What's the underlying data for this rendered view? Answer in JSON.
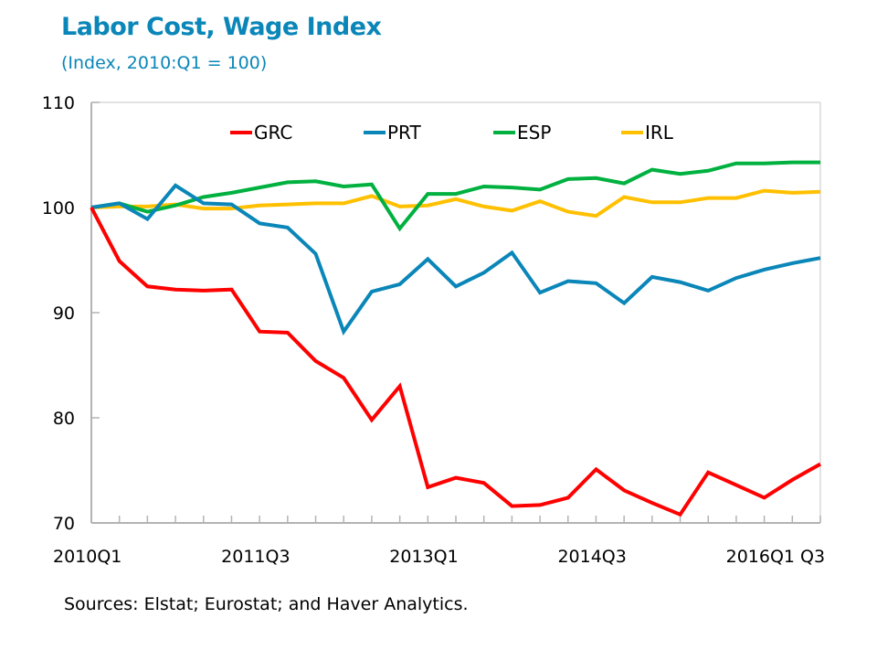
{
  "chart_data": {
    "type": "line",
    "title": "Labor Cost, Wage Index",
    "subtitle": "(Index, 2010:Q1  = 100)",
    "xlabel": "",
    "ylabel": "",
    "ylim": [
      70,
      110
    ],
    "yticks": [
      70,
      80,
      90,
      100,
      110
    ],
    "x": [
      "2010Q1",
      "2010Q2",
      "2010Q3",
      "2010Q4",
      "2011Q1",
      "2011Q2",
      "2011Q3",
      "2011Q4",
      "2012Q1",
      "2012Q2",
      "2012Q3",
      "2012Q4",
      "2013Q1",
      "2013Q2",
      "2013Q3",
      "2013Q4",
      "2014Q1",
      "2014Q2",
      "2014Q3",
      "2014Q4",
      "2015Q1",
      "2015Q2",
      "2015Q3",
      "2015Q4",
      "2016Q1",
      "2016Q2",
      "2016Q3"
    ],
    "xtick_labels": [
      {
        "index": 0,
        "label": "2010Q1"
      },
      {
        "index": 6,
        "label": "2011Q3"
      },
      {
        "index": 12,
        "label": "2013Q1"
      },
      {
        "index": 18,
        "label": "2014Q3"
      },
      {
        "index": 24,
        "label": "2016Q1 Q3"
      }
    ],
    "grid": false,
    "legend_position": "top",
    "series": [
      {
        "name": "GRC",
        "color": "#ff0000",
        "values": [
          100,
          94.9,
          92.5,
          92.2,
          92.1,
          92.2,
          88.2,
          88.1,
          85.4,
          83.8,
          79.8,
          83.0,
          73.4,
          74.3,
          73.8,
          71.6,
          71.7,
          72.4,
          75.1,
          73.1,
          71.9,
          70.8,
          74.8,
          73.6,
          72.4,
          74.1,
          75.6
        ]
      },
      {
        "name": "PRT",
        "color": "#0a86b8",
        "values": [
          100,
          100.4,
          98.9,
          102.1,
          100.4,
          100.3,
          98.5,
          98.1,
          95.6,
          88.2,
          92.0,
          92.7,
          95.1,
          92.5,
          93.8,
          95.7,
          91.9,
          93.0,
          92.8,
          90.9,
          93.4,
          92.9,
          92.1,
          93.3,
          94.1,
          94.7,
          95.2
        ]
      },
      {
        "name": "ESP",
        "color": "#00b140",
        "values": [
          100,
          100.4,
          99.6,
          100.2,
          101.0,
          101.4,
          101.9,
          102.4,
          102.5,
          102.0,
          102.2,
          98.0,
          101.3,
          101.3,
          102.0,
          101.9,
          101.7,
          102.7,
          102.8,
          102.3,
          103.6,
          103.2,
          103.5,
          104.2,
          104.2,
          104.3,
          104.3
        ]
      },
      {
        "name": "IRL",
        "color": "#ffc000",
        "values": [
          100,
          100.1,
          100.1,
          100.3,
          99.9,
          99.9,
          100.2,
          100.3,
          100.4,
          100.4,
          101.1,
          100.1,
          100.2,
          100.8,
          100.1,
          99.7,
          100.6,
          99.6,
          99.2,
          101.0,
          100.5,
          100.5,
          100.9,
          100.9,
          101.6,
          101.4,
          101.5
        ]
      }
    ]
  },
  "source_note": "Sources: Elstat; Eurostat; and Haver Analytics.",
  "colors": {
    "title": "#0a86b8",
    "axis": "#b3b3b3"
  }
}
